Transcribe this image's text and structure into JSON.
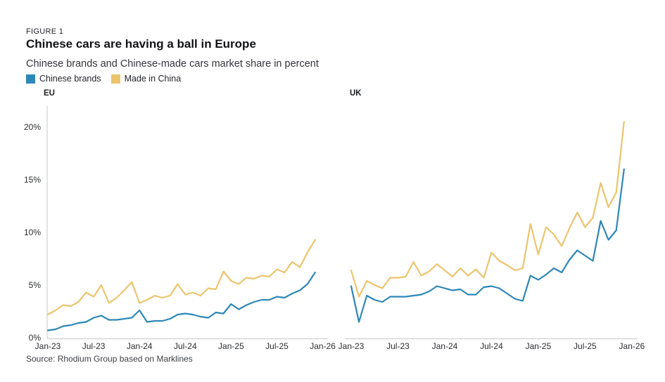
{
  "figure_label": "FIGURE 1",
  "title": "Chinese cars are having a ball in Europe",
  "subtitle": "Chinese brands and Chinese-made cars market share in percent",
  "source": "Source: Rhodium Group based on Marklines",
  "colors": {
    "chinese_brands": "#2d87b7",
    "made_in_china": "#ecc46d",
    "axis": "#c6c8ca"
  },
  "legend": [
    {
      "label": "Chinese brands",
      "color": "#2d87b7"
    },
    {
      "label": "Made in China",
      "color": "#ecc46d"
    }
  ],
  "chart_data": [
    {
      "type": "line",
      "title": "EU",
      "ylabel": "market share in percent",
      "ylim": [
        0,
        21
      ],
      "y_ticks": [
        "0%",
        "5%",
        "10%",
        "15%",
        "20%"
      ],
      "x_tick_labels": [
        "Jan-23",
        "Jul-23",
        "Jan-24",
        "Jul-24",
        "Jan-25",
        "Jul-25",
        "Jan-26"
      ],
      "x": [
        "Jan-23",
        "Feb-23",
        "Mar-23",
        "Apr-23",
        "May-23",
        "Jun-23",
        "Jul-23",
        "Aug-23",
        "Sep-23",
        "Oct-23",
        "Nov-23",
        "Dec-23",
        "Jan-24",
        "Feb-24",
        "Mar-24",
        "Apr-24",
        "May-24",
        "Jun-24",
        "Jul-24",
        "Aug-24",
        "Sep-24",
        "Oct-24",
        "Nov-24",
        "Dec-24",
        "Jan-25",
        "Feb-25",
        "Mar-25",
        "Apr-25",
        "May-25",
        "Jun-25",
        "Jul-25",
        "Aug-25",
        "Sep-25",
        "Oct-25",
        "Nov-25",
        "Dec-25"
      ],
      "series": [
        {
          "name": "Chinese brands",
          "color": "#2d87b7",
          "values": [
            0.7,
            0.8,
            1.1,
            1.2,
            1.4,
            1.5,
            1.9,
            2.1,
            1.7,
            1.7,
            1.8,
            1.9,
            2.6,
            1.5,
            1.6,
            1.6,
            1.8,
            2.2,
            2.3,
            2.2,
            2.0,
            1.9,
            2.4,
            2.3,
            3.2,
            2.7,
            3.1,
            3.4,
            3.6,
            3.6,
            3.9,
            3.8,
            4.2,
            4.5,
            5.1,
            6.2
          ]
        },
        {
          "name": "Made in China",
          "color": "#ecc46d",
          "values": [
            2.2,
            2.6,
            3.1,
            3.0,
            3.4,
            4.3,
            3.9,
            5.0,
            3.3,
            3.8,
            4.5,
            5.3,
            3.3,
            3.6,
            4.0,
            3.8,
            4.0,
            5.1,
            4.1,
            4.3,
            4.0,
            4.7,
            4.6,
            6.3,
            5.4,
            5.1,
            5.7,
            5.6,
            5.9,
            5.8,
            6.5,
            6.2,
            7.2,
            6.7,
            8.1,
            9.3
          ]
        }
      ]
    },
    {
      "type": "line",
      "title": "UK",
      "ylabel": "market share in percent",
      "ylim": [
        0,
        21
      ],
      "y_ticks": [
        "0%",
        "5%",
        "10%",
        "15%",
        "20%"
      ],
      "x_tick_labels": [
        "Jan-23",
        "Jul-23",
        "Jan-24",
        "Jul-24",
        "Jan-25",
        "Jul-25",
        "Jan-26"
      ],
      "x": [
        "Jan-23",
        "Feb-23",
        "Mar-23",
        "Apr-23",
        "May-23",
        "Jun-23",
        "Jul-23",
        "Aug-23",
        "Sep-23",
        "Oct-23",
        "Nov-23",
        "Dec-23",
        "Jan-24",
        "Feb-24",
        "Mar-24",
        "Apr-24",
        "May-24",
        "Jun-24",
        "Jul-24",
        "Aug-24",
        "Sep-24",
        "Oct-24",
        "Nov-24",
        "Dec-24",
        "Jan-25",
        "Feb-25",
        "Mar-25",
        "Apr-25",
        "May-25",
        "Jun-25",
        "Jul-25",
        "Aug-25",
        "Sep-25",
        "Oct-25",
        "Nov-25",
        "Dec-25"
      ],
      "series": [
        {
          "name": "Chinese brands",
          "color": "#2d87b7",
          "values": [
            4.9,
            1.5,
            4.0,
            3.6,
            3.4,
            3.9,
            3.9,
            3.9,
            4.0,
            4.1,
            4.4,
            4.9,
            4.7,
            4.5,
            4.6,
            4.1,
            4.1,
            4.8,
            4.9,
            4.7,
            4.2,
            3.7,
            3.5,
            5.9,
            5.5,
            6.0,
            6.6,
            6.2,
            7.4,
            8.3,
            7.8,
            7.3,
            11.1,
            9.3,
            10.2,
            16.0
          ]
        },
        {
          "name": "Made in China",
          "color": "#ecc46d",
          "values": [
            6.4,
            3.9,
            5.4,
            5.0,
            4.7,
            5.7,
            5.7,
            5.8,
            7.2,
            5.9,
            6.3,
            7.0,
            6.4,
            5.8,
            6.6,
            5.9,
            6.5,
            5.7,
            8.1,
            7.3,
            6.9,
            6.4,
            6.6,
            10.8,
            7.9,
            10.5,
            9.8,
            8.7,
            10.4,
            11.9,
            10.5,
            11.4,
            14.7,
            12.4,
            13.8,
            20.5
          ]
        }
      ]
    }
  ]
}
